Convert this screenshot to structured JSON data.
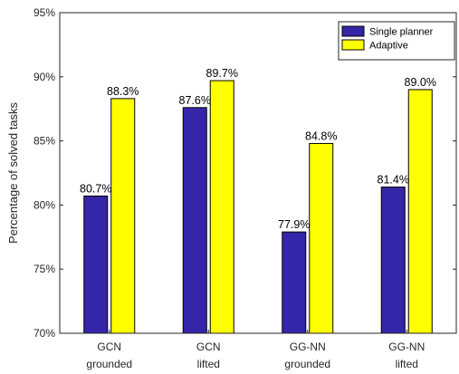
{
  "chart_data": {
    "type": "bar",
    "title": "",
    "xlabel": "",
    "ylabel": "Percentage of solved tasks",
    "ylim": [
      70,
      95
    ],
    "yticks": [
      70,
      75,
      80,
      85,
      90,
      95
    ],
    "ytick_labels": [
      "70%",
      "75%",
      "80%",
      "85%",
      "90%",
      "95%"
    ],
    "value_suffix": "%",
    "grid": false,
    "legend_position": "top-right",
    "categories": [
      [
        "GCN",
        "grounded"
      ],
      [
        "GCN",
        "lifted"
      ],
      [
        "GG-NN",
        "grounded"
      ],
      [
        "GG-NN",
        "lifted"
      ]
    ],
    "series": [
      {
        "name": "Single planner",
        "color": "#3525a8",
        "values": [
          80.7,
          87.6,
          77.9,
          81.4
        ]
      },
      {
        "name": "Adaptive",
        "color": "#ffff00",
        "values": [
          88.3,
          89.7,
          84.8,
          89.0
        ]
      }
    ]
  }
}
